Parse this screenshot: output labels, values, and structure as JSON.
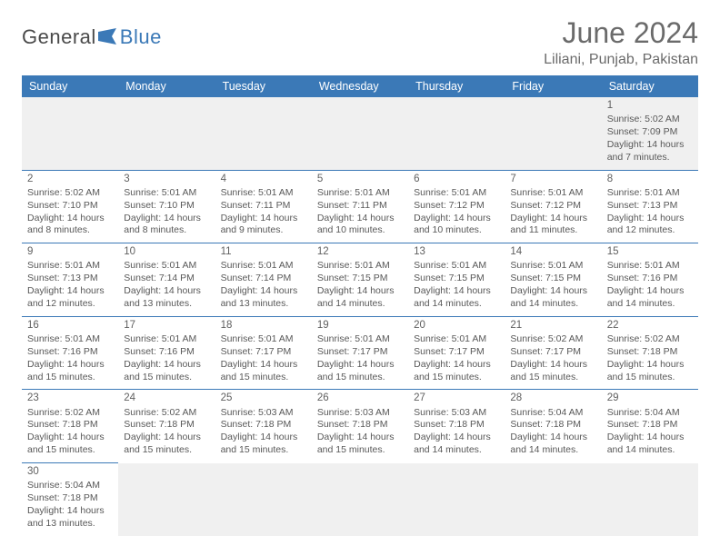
{
  "brand": {
    "part1": "General",
    "part2": "Blue"
  },
  "title": "June 2024",
  "location": "Liliani, Punjab, Pakistan",
  "style": {
    "header_bg": "#3b79b7",
    "header_fg": "#ffffff",
    "rule_color": "#3b79b7",
    "body_fg": "#585858",
    "title_fg": "#6b6b6b",
    "empty_bg": "#f0f0f0",
    "page_bg": "#ffffff",
    "title_fontsize_pt": 24,
    "subtitle_fontsize_pt": 12,
    "th_fontsize_pt": 9.5,
    "cell_fontsize_pt": 8
  },
  "weekdays": [
    "Sunday",
    "Monday",
    "Tuesday",
    "Wednesday",
    "Thursday",
    "Friday",
    "Saturday"
  ],
  "weeks": [
    [
      null,
      null,
      null,
      null,
      null,
      null,
      {
        "d": "1",
        "sr": "5:02 AM",
        "ss": "7:09 PM",
        "dl": "14 hours and 7 minutes."
      }
    ],
    [
      {
        "d": "2",
        "sr": "5:02 AM",
        "ss": "7:10 PM",
        "dl": "14 hours and 8 minutes."
      },
      {
        "d": "3",
        "sr": "5:01 AM",
        "ss": "7:10 PM",
        "dl": "14 hours and 8 minutes."
      },
      {
        "d": "4",
        "sr": "5:01 AM",
        "ss": "7:11 PM",
        "dl": "14 hours and 9 minutes."
      },
      {
        "d": "5",
        "sr": "5:01 AM",
        "ss": "7:11 PM",
        "dl": "14 hours and 10 minutes."
      },
      {
        "d": "6",
        "sr": "5:01 AM",
        "ss": "7:12 PM",
        "dl": "14 hours and 10 minutes."
      },
      {
        "d": "7",
        "sr": "5:01 AM",
        "ss": "7:12 PM",
        "dl": "14 hours and 11 minutes."
      },
      {
        "d": "8",
        "sr": "5:01 AM",
        "ss": "7:13 PM",
        "dl": "14 hours and 12 minutes."
      }
    ],
    [
      {
        "d": "9",
        "sr": "5:01 AM",
        "ss": "7:13 PM",
        "dl": "14 hours and 12 minutes."
      },
      {
        "d": "10",
        "sr": "5:01 AM",
        "ss": "7:14 PM",
        "dl": "14 hours and 13 minutes."
      },
      {
        "d": "11",
        "sr": "5:01 AM",
        "ss": "7:14 PM",
        "dl": "14 hours and 13 minutes."
      },
      {
        "d": "12",
        "sr": "5:01 AM",
        "ss": "7:15 PM",
        "dl": "14 hours and 14 minutes."
      },
      {
        "d": "13",
        "sr": "5:01 AM",
        "ss": "7:15 PM",
        "dl": "14 hours and 14 minutes."
      },
      {
        "d": "14",
        "sr": "5:01 AM",
        "ss": "7:15 PM",
        "dl": "14 hours and 14 minutes."
      },
      {
        "d": "15",
        "sr": "5:01 AM",
        "ss": "7:16 PM",
        "dl": "14 hours and 14 minutes."
      }
    ],
    [
      {
        "d": "16",
        "sr": "5:01 AM",
        "ss": "7:16 PM",
        "dl": "14 hours and 15 minutes."
      },
      {
        "d": "17",
        "sr": "5:01 AM",
        "ss": "7:16 PM",
        "dl": "14 hours and 15 minutes."
      },
      {
        "d": "18",
        "sr": "5:01 AM",
        "ss": "7:17 PM",
        "dl": "14 hours and 15 minutes."
      },
      {
        "d": "19",
        "sr": "5:01 AM",
        "ss": "7:17 PM",
        "dl": "14 hours and 15 minutes."
      },
      {
        "d": "20",
        "sr": "5:01 AM",
        "ss": "7:17 PM",
        "dl": "14 hours and 15 minutes."
      },
      {
        "d": "21",
        "sr": "5:02 AM",
        "ss": "7:17 PM",
        "dl": "14 hours and 15 minutes."
      },
      {
        "d": "22",
        "sr": "5:02 AM",
        "ss": "7:18 PM",
        "dl": "14 hours and 15 minutes."
      }
    ],
    [
      {
        "d": "23",
        "sr": "5:02 AM",
        "ss": "7:18 PM",
        "dl": "14 hours and 15 minutes."
      },
      {
        "d": "24",
        "sr": "5:02 AM",
        "ss": "7:18 PM",
        "dl": "14 hours and 15 minutes."
      },
      {
        "d": "25",
        "sr": "5:03 AM",
        "ss": "7:18 PM",
        "dl": "14 hours and 15 minutes."
      },
      {
        "d": "26",
        "sr": "5:03 AM",
        "ss": "7:18 PM",
        "dl": "14 hours and 15 minutes."
      },
      {
        "d": "27",
        "sr": "5:03 AM",
        "ss": "7:18 PM",
        "dl": "14 hours and 14 minutes."
      },
      {
        "d": "28",
        "sr": "5:04 AM",
        "ss": "7:18 PM",
        "dl": "14 hours and 14 minutes."
      },
      {
        "d": "29",
        "sr": "5:04 AM",
        "ss": "7:18 PM",
        "dl": "14 hours and 14 minutes."
      }
    ],
    [
      {
        "d": "30",
        "sr": "5:04 AM",
        "ss": "7:18 PM",
        "dl": "14 hours and 13 minutes."
      },
      null,
      null,
      null,
      null,
      null,
      null
    ]
  ],
  "labels": {
    "sunrise": "Sunrise: ",
    "sunset": "Sunset: ",
    "daylight": "Daylight: "
  }
}
